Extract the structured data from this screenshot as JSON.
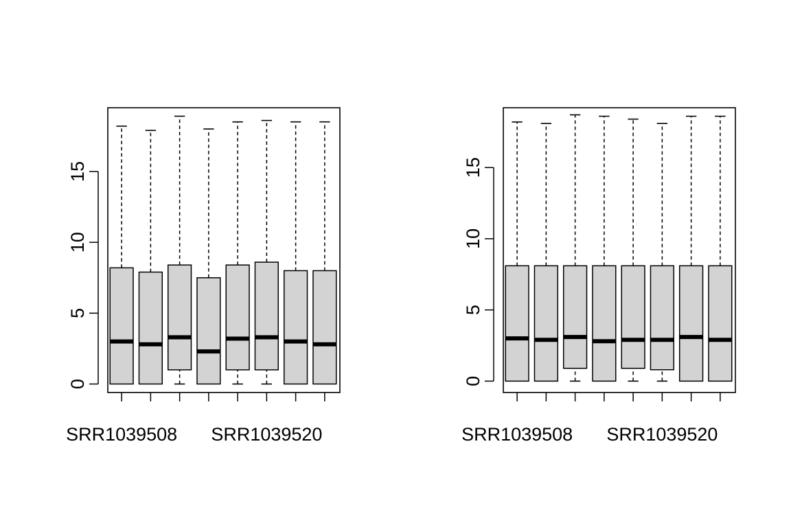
{
  "chart_data": [
    {
      "type": "box",
      "title": "",
      "xlabel": "",
      "ylabel": "",
      "ylim": [
        -0.6,
        19.5
      ],
      "yticks": [
        0,
        5,
        10,
        15
      ],
      "categories": [
        "SRR1039508",
        "",
        "",
        "",
        "",
        "SRR1039520",
        "",
        ""
      ],
      "boxes": [
        {
          "min": 0,
          "q1": 0,
          "median": 3.0,
          "q3": 8.2,
          "max": 18.2,
          "lower_whisker": false
        },
        {
          "min": 0,
          "q1": 0,
          "median": 2.8,
          "q3": 7.9,
          "max": 17.9,
          "lower_whisker": false
        },
        {
          "min": 0,
          "q1": 1.0,
          "median": 3.3,
          "q3": 8.4,
          "max": 18.9,
          "lower_whisker": true
        },
        {
          "min": 0,
          "q1": 0,
          "median": 2.3,
          "q3": 7.5,
          "max": 18.0,
          "lower_whisker": false
        },
        {
          "min": 0,
          "q1": 1.0,
          "median": 3.2,
          "q3": 8.4,
          "max": 18.5,
          "lower_whisker": true
        },
        {
          "min": 0,
          "q1": 1.0,
          "median": 3.3,
          "q3": 8.6,
          "max": 18.6,
          "lower_whisker": true
        },
        {
          "min": 0,
          "q1": 0,
          "median": 3.0,
          "q3": 8.0,
          "max": 18.5,
          "lower_whisker": false
        },
        {
          "min": 0,
          "q1": 0,
          "median": 2.8,
          "q3": 8.0,
          "max": 18.5,
          "lower_whisker": false
        }
      ],
      "box_fill": "#d3d3d3",
      "grid": false
    },
    {
      "type": "box",
      "title": "",
      "xlabel": "",
      "ylabel": "",
      "ylim": [
        -0.8,
        19.2
      ],
      "yticks": [
        0,
        5,
        10,
        15
      ],
      "categories": [
        "SRR1039508",
        "",
        "",
        "",
        "",
        "SRR1039520",
        "",
        ""
      ],
      "boxes": [
        {
          "min": 0,
          "q1": 0,
          "median": 3.0,
          "q3": 8.1,
          "max": 18.2,
          "lower_whisker": false
        },
        {
          "min": 0,
          "q1": 0,
          "median": 2.9,
          "q3": 8.1,
          "max": 18.1,
          "lower_whisker": false
        },
        {
          "min": 0,
          "q1": 0.9,
          "median": 3.1,
          "q3": 8.1,
          "max": 18.7,
          "lower_whisker": true
        },
        {
          "min": 0,
          "q1": 0,
          "median": 2.8,
          "q3": 8.1,
          "max": 18.6,
          "lower_whisker": false
        },
        {
          "min": 0,
          "q1": 0.9,
          "median": 2.9,
          "q3": 8.1,
          "max": 18.4,
          "lower_whisker": true
        },
        {
          "min": 0,
          "q1": 0.8,
          "median": 2.9,
          "q3": 8.1,
          "max": 18.1,
          "lower_whisker": true
        },
        {
          "min": 0,
          "q1": 0,
          "median": 3.1,
          "q3": 8.1,
          "max": 18.6,
          "lower_whisker": false
        },
        {
          "min": 0,
          "q1": 0,
          "median": 2.9,
          "q3": 8.1,
          "max": 18.6,
          "lower_whisker": false
        }
      ],
      "box_fill": "#d3d3d3",
      "grid": false
    }
  ]
}
